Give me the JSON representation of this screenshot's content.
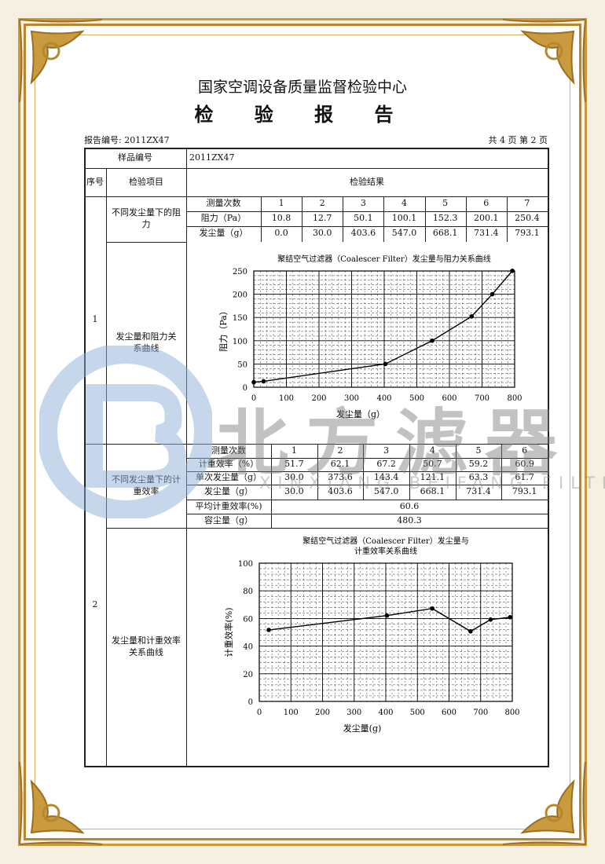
{
  "header": {
    "institution": "国家空调设备质量监督检验中心",
    "title": "检 验 报 告",
    "report_no": "报告编号: 2011ZX47",
    "page_info": "共 4 页 第 2 页"
  },
  "watermark": {
    "cn": "北方滤器",
    "en": "XINXIANG BEIFANG FILTER CO.,LTD."
  },
  "table": {
    "sample_no_label": "样品编号",
    "sample_no": "2011ZX47",
    "col_seq": "序号",
    "col_item": "检验项目",
    "col_result": "检验结果",
    "item1": {
      "seq": "1",
      "resistance_label": "不同发尘量下的阻力",
      "curve_label": "发尘量和阻力关系曲线",
      "rows": [
        {
          "label": "测量次数",
          "values": [
            "1",
            "2",
            "3",
            "4",
            "5",
            "6",
            "7"
          ]
        },
        {
          "label": "阻力（Pa）",
          "values": [
            "10.8",
            "12.7",
            "50.1",
            "100.1",
            "152.3",
            "200.1",
            "250.4"
          ]
        },
        {
          "label": "发尘量（g）",
          "values": [
            "0.0",
            "30.0",
            "403.6",
            "547.0",
            "668.1",
            "731.4",
            "793.1"
          ]
        }
      ]
    },
    "item2": {
      "seq": "2",
      "efficiency_label": "不同发尘量下的计重效率",
      "curve_label": "发尘量和计重效率关系曲线",
      "rows": [
        {
          "label": "测量次数",
          "values": [
            "1",
            "2",
            "3",
            "4",
            "5",
            "6"
          ]
        },
        {
          "label": "计重效率（%）",
          "values": [
            "51.7",
            "62.1",
            "67.2",
            "50.7",
            "59.2",
            "60.9"
          ]
        },
        {
          "label": "单次发尘量（g）",
          "values": [
            "30.0",
            "373.6",
            "143.4",
            "121.1",
            "63.3",
            "61.7"
          ]
        },
        {
          "label": "发尘量（g）",
          "values": [
            "30.0",
            "403.6",
            "547.0",
            "668.1",
            "731.4",
            "793.1"
          ]
        }
      ],
      "avg_label": "平均计重效率(%)",
      "avg_value": "60.6",
      "capacity_label": "容尘量（g）",
      "capacity_value": "480.3"
    }
  },
  "chart_data": [
    {
      "type": "line",
      "title": "聚结空气过滤器（Coalescer Filter）发尘量与阻力关系曲线",
      "xlabel": "发尘量（g）",
      "ylabel": "阻力（Pa）",
      "xlim": [
        0,
        800
      ],
      "ylim": [
        0,
        250
      ],
      "grid": true,
      "xticks": [
        "0",
        "100",
        "200",
        "300",
        "400",
        "500",
        "600",
        "700",
        "800"
      ],
      "yticks": [
        "0",
        "50",
        "100",
        "150",
        "200",
        "250"
      ],
      "x": [
        0.0,
        30.0,
        403.6,
        547.0,
        668.1,
        731.4,
        793.1
      ],
      "y": [
        10.8,
        12.7,
        50.1,
        100.1,
        152.3,
        200.1,
        250.4
      ]
    },
    {
      "type": "line",
      "title": "聚结空气过滤器（Coalescer Filter）发尘量与",
      "title2": "计重效率关系曲线",
      "xlabel": "发尘量(g)",
      "ylabel": "计重效率(%)",
      "xlim": [
        0,
        800
      ],
      "ylim": [
        0,
        100
      ],
      "grid": true,
      "xticks": [
        "0",
        "100",
        "200",
        "300",
        "400",
        "500",
        "600",
        "700",
        "800"
      ],
      "yticks": [
        "0",
        "20",
        "40",
        "60",
        "80",
        "100"
      ],
      "x": [
        30.0,
        403.6,
        547.0,
        668.1,
        731.4,
        793.1
      ],
      "y": [
        51.7,
        62.1,
        67.2,
        50.7,
        59.2,
        60.9
      ]
    }
  ],
  "colors": {
    "gold": "#b8862e",
    "watermark_blue": "#8fb0d8"
  }
}
